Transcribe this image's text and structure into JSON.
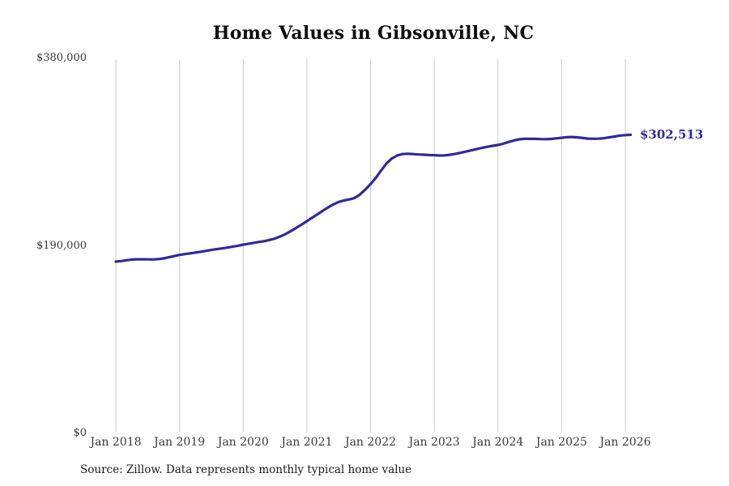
{
  "title": "Home Values in Gibsonville, NC",
  "source_note": "Source: Zillow. Data represents monthly typical home value",
  "colors": {
    "line": "#312a99",
    "accent_label": "#2f2a9e",
    "grid": "#cccccc",
    "axis_text": "#3a3a3a",
    "title_text": "#0d0d0d",
    "background": "#ffffff"
  },
  "chart_data": {
    "type": "line",
    "title": "Home Values in Gibsonville, NC",
    "xlabel": "",
    "ylabel": "",
    "ylim": [
      0,
      380000
    ],
    "grid": "vertical-only",
    "legend": "none",
    "y_ticks": [
      {
        "label": "$0",
        "value": 0
      },
      {
        "label": "$190,000",
        "value": 190000
      },
      {
        "label": "$380,000",
        "value": 380000
      }
    ],
    "x_tick_labels": [
      "Jan 2018",
      "Jan 2019",
      "Jan 2020",
      "Jan 2021",
      "Jan 2022",
      "Jan 2023",
      "Jan 2024",
      "Jan 2025",
      "Jan 2026"
    ],
    "final_value": 302513,
    "final_value_label": "$302,513",
    "series": [
      {
        "name": "Monthly typical home value",
        "frequency": "monthly",
        "start_month": "Jan 2018",
        "end_month": "Feb 2026",
        "values": [
          174000,
          174600,
          175400,
          176100,
          176400,
          176400,
          176300,
          176200,
          176500,
          177300,
          178400,
          179600,
          180800,
          181600,
          182400,
          183200,
          184000,
          184900,
          185800,
          186600,
          187400,
          188200,
          189100,
          190100,
          191200,
          192100,
          193000,
          193900,
          194800,
          196000,
          197500,
          199500,
          202000,
          205000,
          208200,
          211500,
          215000,
          218500,
          222000,
          225500,
          229000,
          232000,
          234500,
          236000,
          237000,
          238500,
          242000,
          247000,
          252500,
          259000,
          266500,
          273500,
          278500,
          281500,
          283000,
          283300,
          283000,
          282600,
          282300,
          282000,
          281800,
          281500,
          281700,
          282300,
          283200,
          284300,
          285500,
          286800,
          288000,
          289300,
          290400,
          291400,
          292200,
          293500,
          295200,
          296800,
          297900,
          298400,
          298500,
          298400,
          298200,
          298100,
          298300,
          298900,
          299500,
          300100,
          300300,
          299900,
          299200,
          298700,
          298500,
          298600,
          299100,
          299900,
          300800,
          301700,
          302200,
          302513
        ]
      }
    ]
  }
}
